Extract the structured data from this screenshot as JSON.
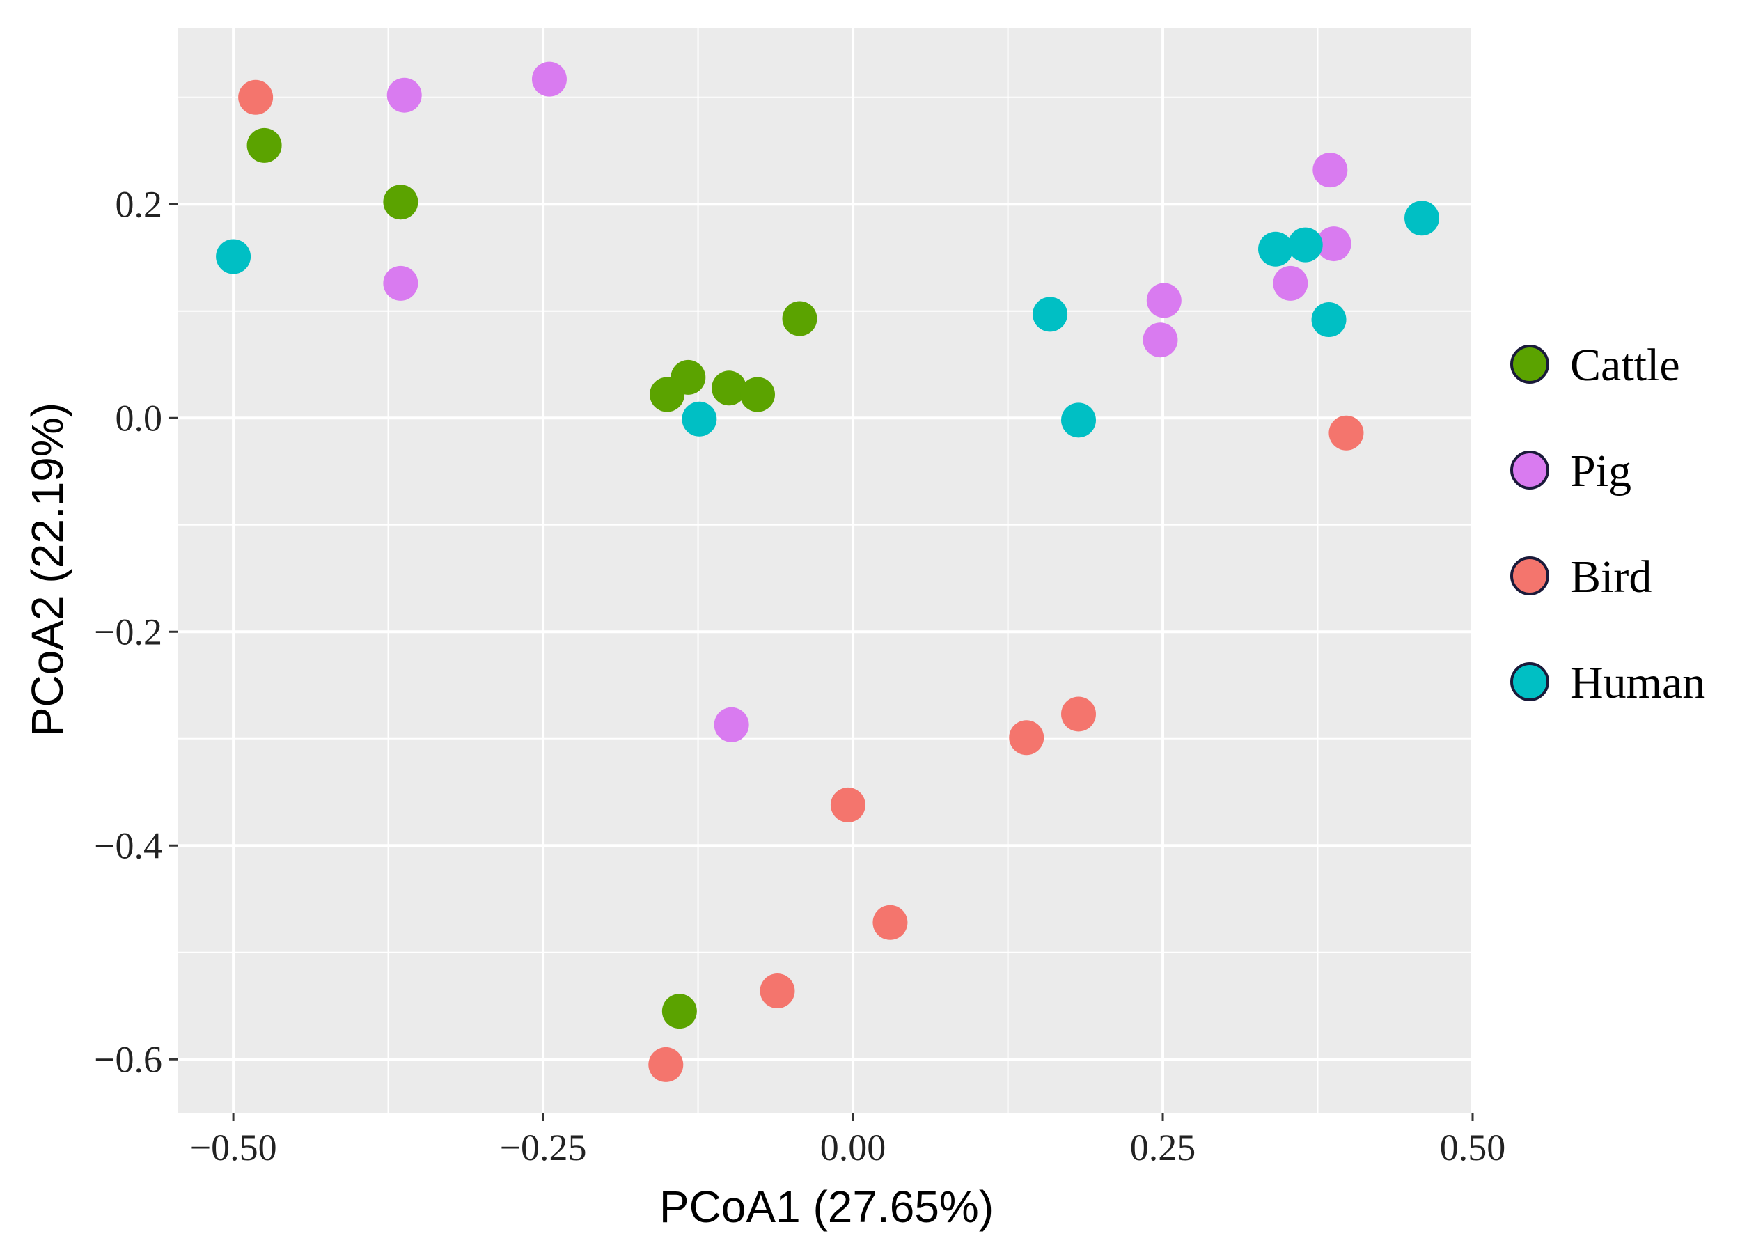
{
  "chart_data": {
    "type": "scatter",
    "xlabel": "PCoA1 (27.65%)",
    "ylabel": "PCoA2 (22.19%)",
    "xlim": [
      -0.545,
      0.5
    ],
    "ylim": [
      -0.65,
      0.365
    ],
    "x_ticks": [
      -0.5,
      -0.25,
      0.0,
      0.25,
      0.5
    ],
    "x_tick_labels": [
      "−0.50",
      "−0.25",
      "0.00",
      "0.25",
      "0.50"
    ],
    "y_ticks": [
      -0.6,
      -0.4,
      -0.2,
      0.0,
      0.2
    ],
    "y_tick_labels": [
      "−0.6",
      "−0.4",
      "−0.2",
      "0.0",
      "0.2"
    ],
    "grid": true,
    "background": "#EBEBEB",
    "legend_position": "right",
    "series": [
      {
        "name": "Cattle",
        "color": "#5BA300",
        "points": [
          [
            -0.475,
            0.255
          ],
          [
            -0.365,
            0.202
          ],
          [
            -0.15,
            0.022
          ],
          [
            -0.133,
            0.038
          ],
          [
            -0.1,
            0.028
          ],
          [
            -0.077,
            0.022
          ],
          [
            -0.043,
            0.093
          ],
          [
            -0.14,
            -0.555
          ]
        ]
      },
      {
        "name": "Pig",
        "color": "#D97BF0",
        "points": [
          [
            -0.362,
            0.302
          ],
          [
            -0.245,
            0.317
          ],
          [
            -0.365,
            0.126
          ],
          [
            0.385,
            0.232
          ],
          [
            0.388,
            0.163
          ],
          [
            0.353,
            0.126
          ],
          [
            0.251,
            0.11
          ],
          [
            0.248,
            0.073
          ],
          [
            -0.098,
            -0.287
          ]
        ]
      },
      {
        "name": "Bird",
        "color": "#F4756D",
        "points": [
          [
            -0.482,
            0.3
          ],
          [
            0.398,
            -0.014
          ],
          [
            0.182,
            -0.277
          ],
          [
            0.14,
            -0.299
          ],
          [
            -0.004,
            -0.362
          ],
          [
            0.03,
            -0.472
          ],
          [
            -0.061,
            -0.536
          ],
          [
            -0.151,
            -0.605
          ]
        ]
      },
      {
        "name": "Human",
        "color": "#00BFC4",
        "points": [
          [
            -0.5,
            0.151
          ],
          [
            -0.124,
            -0.001
          ],
          [
            0.159,
            0.097
          ],
          [
            0.182,
            -0.002
          ],
          [
            0.341,
            0.158
          ],
          [
            0.365,
            0.162
          ],
          [
            0.384,
            0.092
          ],
          [
            0.459,
            0.187
          ]
        ]
      }
    ]
  }
}
